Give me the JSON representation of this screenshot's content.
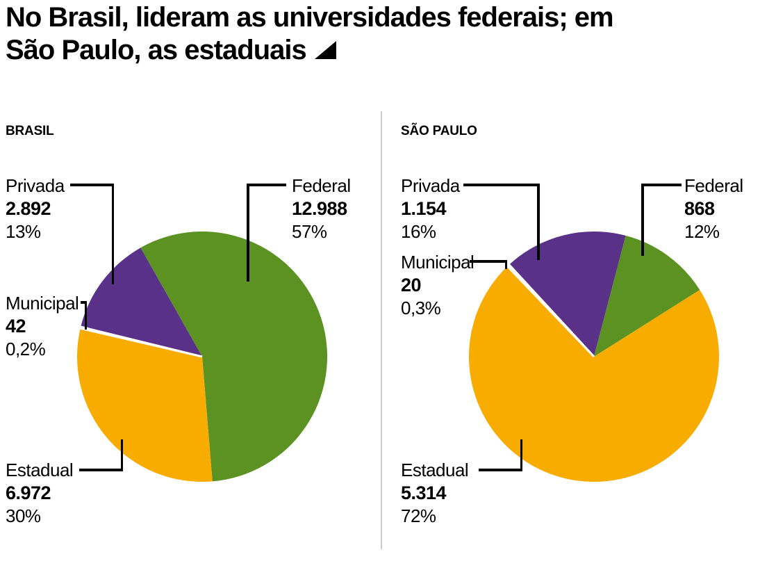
{
  "title": {
    "line1": "No Brasil, lideram as universidades federais; em",
    "line2": "São Paulo, as estaduais",
    "marker_icon": "lower-right-triangle-icon"
  },
  "divider_color": "#cccccc",
  "chart_data": [
    {
      "type": "pie",
      "title": "BRASIL",
      "rotation_deg": -29.5,
      "legend_position": "callout-labels",
      "slices": [
        {
          "label": "Federal",
          "value": 12988,
          "value_label": "12.988",
          "percent": 57,
          "percent_label": "57%",
          "color": "#5B9222"
        },
        {
          "label": "Estadual",
          "value": 6972,
          "value_label": "6.972",
          "percent": 30,
          "percent_label": "30%",
          "color": "#F8AC00"
        },
        {
          "label": "Municipal",
          "value": 42,
          "value_label": "42",
          "percent": 0.2,
          "percent_label": "0,2%",
          "color": "#FFFFFF",
          "separator": true
        },
        {
          "label": "Privada",
          "value": 2892,
          "value_label": "2.892",
          "percent": 13,
          "percent_label": "13%",
          "color": "#5A3189"
        }
      ]
    },
    {
      "type": "pie",
      "title": "SÃO PAULO",
      "rotation_deg": -43.8,
      "legend_position": "callout-labels",
      "slices": [
        {
          "label": "Municipal",
          "value": 20,
          "value_label": "20",
          "percent": 0.3,
          "percent_label": "0,3%",
          "color": "#FFFFFF",
          "separator": true
        },
        {
          "label": "Privada",
          "value": 1154,
          "value_label": "1.154",
          "percent": 16,
          "percent_label": "16%",
          "color": "#5A3189"
        },
        {
          "label": "Federal",
          "value": 868,
          "value_label": "868",
          "percent": 12,
          "percent_label": "12%",
          "color": "#5B9222"
        },
        {
          "label": "Estadual",
          "value": 5314,
          "value_label": "5.314",
          "percent": 72,
          "percent_label": "72%",
          "color": "#F8AC00"
        }
      ]
    }
  ]
}
